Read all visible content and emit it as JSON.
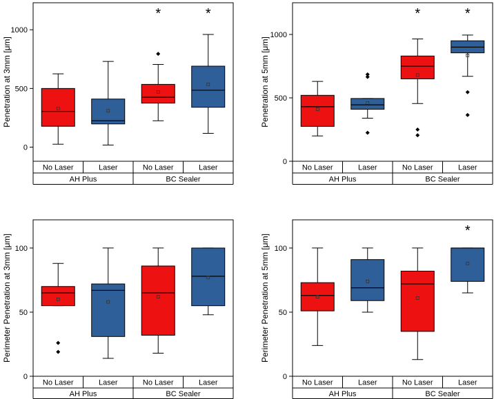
{
  "colors": {
    "red": "#ee1111",
    "blue": "#2f5f99",
    "star": "#e02020"
  },
  "star_symbol": "*",
  "chart_data": [
    {
      "type": "boxplot",
      "ylabel": "Penetration at 3mm [μm]",
      "ylim": [
        -120,
        1230
      ],
      "yticks": [
        0,
        500,
        1000
      ],
      "categories": [
        "No Laser",
        "Laser",
        "No Laser",
        "Laser"
      ],
      "groups": [
        {
          "label": "AH Plus",
          "span": [
            0,
            1
          ]
        },
        {
          "label": "BC Sealer",
          "span": [
            2,
            3
          ]
        }
      ],
      "boxes": [
        {
          "color": "red",
          "min": 25,
          "q1": 178,
          "median": 305,
          "q3": 500,
          "max": 625,
          "mean": 330,
          "outliers": [],
          "significant": false
        },
        {
          "color": "blue",
          "min": 18,
          "q1": 198,
          "median": 225,
          "q3": 410,
          "max": 730,
          "mean": 310,
          "outliers": [],
          "significant": false
        },
        {
          "color": "red",
          "min": 225,
          "q1": 375,
          "median": 425,
          "q3": 535,
          "max": 705,
          "mean": 470,
          "outliers": [
            795
          ],
          "significant": true
        },
        {
          "color": "blue",
          "min": 118,
          "q1": 340,
          "median": 485,
          "q3": 690,
          "max": 960,
          "mean": 535,
          "outliers": [],
          "significant": true
        }
      ]
    },
    {
      "type": "boxplot",
      "ylabel": "Penetration at 5mm [μm]",
      "ylim": [
        0,
        1250
      ],
      "yticks": [
        0,
        500,
        1000
      ],
      "categories": [
        "No Laser",
        "Laser",
        "No Laser",
        "Laser"
      ],
      "groups": [
        {
          "label": "AH Plus",
          "span": [
            0,
            1
          ]
        },
        {
          "label": "BC Sealer",
          "span": [
            2,
            3
          ]
        }
      ],
      "boxes": [
        {
          "color": "red",
          "min": 200,
          "q1": 275,
          "median": 430,
          "q3": 520,
          "max": 630,
          "mean": 410,
          "outliers": [],
          "significant": false
        },
        {
          "color": "blue",
          "min": 340,
          "q1": 410,
          "median": 445,
          "q3": 495,
          "max": 495,
          "mean": 460,
          "outliers": [
            225,
            665,
            685
          ],
          "significant": false
        },
        {
          "color": "red",
          "min": 455,
          "q1": 650,
          "median": 750,
          "q3": 830,
          "max": 965,
          "mean": 680,
          "outliers": [
            205,
            250
          ],
          "significant": true
        },
        {
          "color": "blue",
          "min": 670,
          "q1": 855,
          "median": 900,
          "q3": 950,
          "max": 995,
          "mean": 835,
          "outliers": [
            365,
            545
          ],
          "significant": true
        }
      ]
    },
    {
      "type": "boxplot",
      "ylabel": "Perimeter Penetration at 3mm [μm]",
      "ylim": [
        0,
        122
      ],
      "yticks": [
        0,
        50,
        100
      ],
      "categories": [
        "No Laser",
        "Laser",
        "No Laser",
        "Laser"
      ],
      "groups": [
        {
          "label": "AH Plus",
          "span": [
            0,
            1
          ]
        },
        {
          "label": "BC Sealer",
          "span": [
            2,
            3
          ]
        }
      ],
      "boxes": [
        {
          "color": "red",
          "min": 55,
          "q1": 55,
          "median": 65,
          "q3": 70,
          "max": 88,
          "mean": 60,
          "outliers": [
            19,
            26
          ],
          "significant": false
        },
        {
          "color": "blue",
          "min": 14,
          "q1": 31,
          "median": 67,
          "q3": 72,
          "max": 100,
          "mean": 58,
          "outliers": [],
          "significant": false
        },
        {
          "color": "red",
          "min": 18,
          "q1": 32,
          "median": 65,
          "q3": 86,
          "max": 100,
          "mean": 62,
          "outliers": [],
          "significant": false
        },
        {
          "color": "blue",
          "min": 48,
          "q1": 55,
          "median": 78,
          "q3": 100,
          "max": 100,
          "mean": 77,
          "outliers": [],
          "significant": false
        }
      ]
    },
    {
      "type": "boxplot",
      "ylabel": "Perimeter Penetration at 5mm [μm]",
      "ylim": [
        0,
        122
      ],
      "yticks": [
        0,
        50,
        100
      ],
      "categories": [
        "No Laser",
        "Laser",
        "No Laser",
        "Laser"
      ],
      "groups": [
        {
          "label": "AH Plus",
          "span": [
            0,
            1
          ]
        },
        {
          "label": "BC Sealer",
          "span": [
            2,
            3
          ]
        }
      ],
      "boxes": [
        {
          "color": "red",
          "min": 24,
          "q1": 51,
          "median": 63,
          "q3": 73,
          "max": 100,
          "mean": 62,
          "outliers": [],
          "significant": false
        },
        {
          "color": "blue",
          "min": 50,
          "q1": 59,
          "median": 69,
          "q3": 91,
          "max": 100,
          "mean": 74,
          "outliers": [],
          "significant": false
        },
        {
          "color": "red",
          "min": 13,
          "q1": 35,
          "median": 72,
          "q3": 82,
          "max": 100,
          "mean": 61,
          "outliers": [],
          "significant": false
        },
        {
          "color": "blue",
          "min": 65,
          "q1": 74,
          "median": 100,
          "q3": 100,
          "max": 100,
          "mean": 88,
          "outliers": [],
          "significant": true
        }
      ]
    }
  ]
}
